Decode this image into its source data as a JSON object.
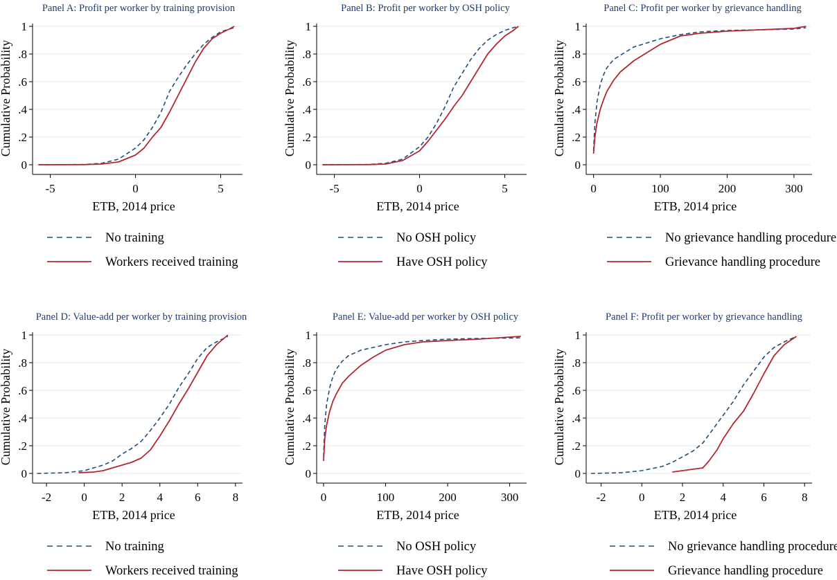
{
  "figure": {
    "colors": {
      "dashed": "#1f4e79",
      "solid": "#b2272f",
      "grid": "#e7e7e7",
      "axis": "#000000",
      "title": "#1f3b73"
    }
  },
  "chart_data": [
    {
      "type": "line",
      "title": "Panel A: Profit per worker by training provision",
      "xlabel": "ETB, 2014 price",
      "ylabel": "Cumulative Probability",
      "xlim": [
        -6,
        6.2
      ],
      "ylim": [
        0,
        1
      ],
      "xticks": [
        -5,
        0,
        5
      ],
      "xtick_labels": [
        "-5",
        "0",
        "5"
      ],
      "yticks": [
        0,
        0.2,
        0.4,
        0.6,
        0.8,
        1
      ],
      "ytick_labels": [
        "0",
        ".2",
        ".4",
        ".6",
        ".8",
        "1"
      ],
      "grid": true,
      "legend_position": "bottom",
      "series": [
        {
          "name": "No training",
          "style": "dashed",
          "x": [
            -5.7,
            -3,
            -2,
            -1,
            0,
            0.5,
            1,
            1.5,
            2,
            2.5,
            3,
            3.5,
            4,
            4.5,
            5,
            5.5,
            5.8
          ],
          "y": [
            0,
            0.002,
            0.01,
            0.04,
            0.12,
            0.18,
            0.27,
            0.38,
            0.53,
            0.63,
            0.72,
            0.8,
            0.87,
            0.92,
            0.96,
            0.98,
            0.99
          ]
        },
        {
          "name": "Workers received training",
          "style": "solid",
          "x": [
            -5.7,
            -3,
            -2,
            -1,
            0,
            0.5,
            1,
            1.5,
            2,
            2.5,
            3,
            3.5,
            4,
            4.5,
            5,
            5.5,
            5.8
          ],
          "y": [
            0,
            0.001,
            0.005,
            0.02,
            0.07,
            0.12,
            0.2,
            0.27,
            0.38,
            0.5,
            0.62,
            0.74,
            0.84,
            0.91,
            0.95,
            0.98,
            1.0
          ]
        }
      ]
    },
    {
      "type": "line",
      "title": "Panel B: Profit per worker by OSH policy",
      "xlabel": "ETB, 2014 price",
      "ylabel": "Cumulative Probability",
      "xlim": [
        -6,
        6.2
      ],
      "ylim": [
        0,
        1
      ],
      "xticks": [
        -5,
        0,
        5
      ],
      "xtick_labels": [
        "-5",
        "0",
        "5"
      ],
      "yticks": [
        0,
        0.2,
        0.4,
        0.6,
        0.8,
        1
      ],
      "ytick_labels": [
        "0",
        ".2",
        ".4",
        ".6",
        ".8",
        "1"
      ],
      "grid": true,
      "legend_position": "bottom",
      "series": [
        {
          "name": "No OSH policy",
          "style": "dashed",
          "x": [
            -5.7,
            -3,
            -2,
            -1,
            0,
            0.5,
            1,
            1.5,
            2,
            2.5,
            3,
            3.5,
            4,
            4.5,
            5,
            5.5,
            5.8
          ],
          "y": [
            0,
            0.002,
            0.01,
            0.04,
            0.13,
            0.2,
            0.3,
            0.42,
            0.56,
            0.66,
            0.76,
            0.84,
            0.9,
            0.94,
            0.97,
            0.99,
            1.0
          ]
        },
        {
          "name": "Have OSH policy",
          "style": "solid",
          "x": [
            -5.7,
            -3,
            -2,
            -1,
            0,
            0.5,
            1,
            1.5,
            2,
            2.5,
            3,
            3.5,
            4,
            4.5,
            5,
            5.5,
            5.8
          ],
          "y": [
            0,
            0.001,
            0.005,
            0.03,
            0.1,
            0.17,
            0.25,
            0.33,
            0.42,
            0.5,
            0.6,
            0.7,
            0.8,
            0.87,
            0.93,
            0.97,
            1.0
          ]
        }
      ]
    },
    {
      "type": "line",
      "title": "Panel C: Profit per worker by grievance handling",
      "xlabel": "ETB, 2014 price",
      "ylabel": "Cumulative Probability",
      "xlim": [
        -10,
        325
      ],
      "ylim": [
        0,
        1
      ],
      "xticks": [
        0,
        100,
        200,
        300
      ],
      "xtick_labels": [
        "0",
        "100",
        "200",
        "300"
      ],
      "yticks": [
        0,
        0.2,
        0.4,
        0.6,
        0.8,
        1
      ],
      "ytick_labels": [
        "0",
        ".2",
        ".4",
        ".6",
        ".8",
        "1"
      ],
      "grid": true,
      "legend_position": "bottom",
      "series": [
        {
          "name": "No grievance handling procedure",
          "style": "dashed",
          "x": [
            0,
            2,
            5,
            10,
            15,
            20,
            30,
            40,
            50,
            60,
            80,
            100,
            130,
            160,
            200,
            250,
            300,
            318
          ],
          "y": [
            0.1,
            0.3,
            0.45,
            0.58,
            0.65,
            0.7,
            0.76,
            0.79,
            0.82,
            0.85,
            0.88,
            0.91,
            0.94,
            0.96,
            0.97,
            0.975,
            0.98,
            0.99
          ]
        },
        {
          "name": "Grievance handling procedure",
          "style": "solid",
          "x": [
            0,
            2,
            5,
            10,
            15,
            20,
            30,
            40,
            50,
            60,
            80,
            100,
            130,
            160,
            200,
            250,
            300,
            318
          ],
          "y": [
            0.08,
            0.2,
            0.3,
            0.4,
            0.47,
            0.53,
            0.61,
            0.67,
            0.71,
            0.75,
            0.81,
            0.87,
            0.93,
            0.95,
            0.965,
            0.975,
            0.985,
            1.0
          ]
        }
      ]
    },
    {
      "type": "line",
      "title": "Panel D: Value-add per worker by training provision",
      "xlabel": "ETB, 2014 price",
      "ylabel": "Cumulative Probability",
      "xlim": [
        -2.7,
        8.3
      ],
      "ylim": [
        0,
        1
      ],
      "xticks": [
        -2,
        0,
        2,
        4,
        6,
        8
      ],
      "xtick_labels": [
        "-2",
        "0",
        "2",
        "4",
        "6",
        "8"
      ],
      "yticks": [
        0,
        0.2,
        0.4,
        0.6,
        0.8,
        1
      ],
      "ytick_labels": [
        "0",
        ".2",
        ".4",
        ".6",
        ".8",
        "1"
      ],
      "grid": true,
      "legend_position": "bottom",
      "series": [
        {
          "name": "No training",
          "style": "dashed",
          "x": [
            -2.5,
            -1,
            0,
            1,
            1.5,
            2,
            2.5,
            3,
            3.5,
            4,
            4.5,
            5,
            5.5,
            6,
            6.5,
            7,
            7.6
          ],
          "y": [
            0,
            0.005,
            0.02,
            0.06,
            0.09,
            0.14,
            0.18,
            0.23,
            0.31,
            0.4,
            0.5,
            0.62,
            0.72,
            0.83,
            0.91,
            0.95,
            0.99
          ]
        },
        {
          "name": "Workers received training",
          "style": "solid",
          "x": [
            -0.3,
            0.5,
            1,
            1.5,
            2,
            2.5,
            3,
            3.5,
            4,
            4.5,
            5,
            5.5,
            6,
            6.5,
            7,
            7.6
          ],
          "y": [
            0.005,
            0.01,
            0.02,
            0.04,
            0.06,
            0.08,
            0.11,
            0.17,
            0.27,
            0.38,
            0.5,
            0.61,
            0.73,
            0.85,
            0.93,
            1.0
          ]
        }
      ]
    },
    {
      "type": "line",
      "title": "Panel E: Value-add per worker by OSH policy",
      "xlabel": "ETB, 2014 price",
      "ylabel": "Cumulative Probability",
      "xlim": [
        -10,
        325
      ],
      "ylim": [
        0,
        1
      ],
      "xticks": [
        0,
        100,
        200,
        300
      ],
      "xtick_labels": [
        "0",
        "100",
        "200",
        "300"
      ],
      "yticks": [
        0,
        0.2,
        0.4,
        0.6,
        0.8,
        1
      ],
      "ytick_labels": [
        "0",
        ".2",
        ".4",
        ".6",
        ".8",
        "1"
      ],
      "grid": true,
      "legend_position": "bottom",
      "series": [
        {
          "name": "No OSH policy",
          "style": "dashed",
          "x": [
            0,
            2,
            5,
            10,
            15,
            20,
            30,
            40,
            50,
            60,
            80,
            100,
            130,
            160,
            200,
            250,
            300,
            318
          ],
          "y": [
            0.12,
            0.35,
            0.5,
            0.62,
            0.7,
            0.75,
            0.81,
            0.85,
            0.87,
            0.89,
            0.91,
            0.93,
            0.95,
            0.96,
            0.97,
            0.975,
            0.978,
            0.98
          ]
        },
        {
          "name": "Have OSH policy",
          "style": "solid",
          "x": [
            0,
            2,
            5,
            10,
            15,
            20,
            30,
            40,
            50,
            60,
            80,
            100,
            130,
            160,
            200,
            250,
            300,
            318
          ],
          "y": [
            0.09,
            0.25,
            0.35,
            0.45,
            0.52,
            0.57,
            0.65,
            0.7,
            0.74,
            0.78,
            0.84,
            0.89,
            0.93,
            0.95,
            0.96,
            0.97,
            0.985,
            0.99
          ]
        }
      ]
    },
    {
      "type": "line",
      "title": "Panel F: Profit per worker by grievance handling",
      "xlabel": "ETB, 2014 price",
      "ylabel": "Cumulative Probability",
      "xlim": [
        -2.7,
        8.3
      ],
      "ylim": [
        0,
        1
      ],
      "xticks": [
        -2,
        0,
        2,
        4,
        6,
        8
      ],
      "xtick_labels": [
        "-2",
        "0",
        "2",
        "4",
        "6",
        "8"
      ],
      "yticks": [
        0,
        0.2,
        0.4,
        0.6,
        0.8,
        1
      ],
      "ytick_labels": [
        "0",
        ".2",
        ".4",
        ".6",
        ".8",
        "1"
      ],
      "grid": true,
      "legend_position": "bottom",
      "series": [
        {
          "name": "No grievance handling procedure",
          "style": "dashed",
          "x": [
            -2.5,
            -1,
            0,
            1,
            1.5,
            2,
            2.5,
            3,
            3.5,
            4,
            4.5,
            5,
            5.5,
            6,
            6.5,
            7,
            7.6
          ],
          "y": [
            0,
            0.005,
            0.02,
            0.05,
            0.08,
            0.12,
            0.16,
            0.22,
            0.32,
            0.42,
            0.52,
            0.64,
            0.74,
            0.84,
            0.91,
            0.95,
            0.99
          ]
        },
        {
          "name": "Grievance handling procedure",
          "style": "solid",
          "x": [
            1.5,
            2,
            2.5,
            3,
            3.3,
            3.7,
            4,
            4.5,
            5,
            5.5,
            6,
            6.5,
            7,
            7.6
          ],
          "y": [
            0.01,
            0.02,
            0.03,
            0.04,
            0.09,
            0.17,
            0.25,
            0.36,
            0.45,
            0.58,
            0.72,
            0.85,
            0.93,
            0.99
          ]
        }
      ]
    }
  ]
}
